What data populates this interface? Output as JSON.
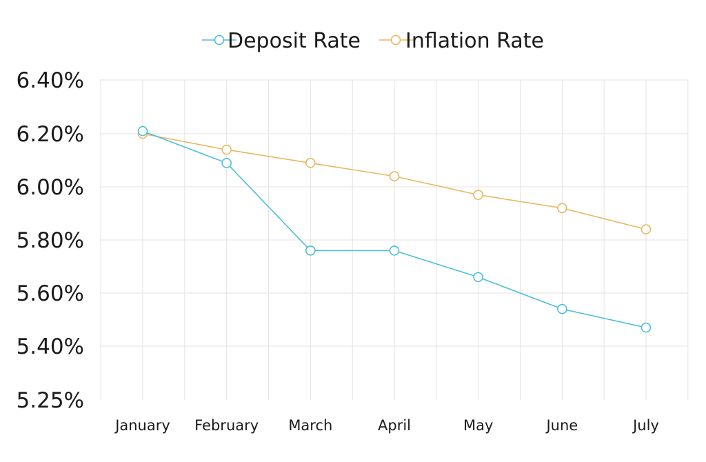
{
  "chart_data": {
    "type": "line",
    "categories": [
      "January",
      "February",
      "March",
      "April",
      "May",
      "June",
      "July"
    ],
    "series": [
      {
        "name": "Deposit Rate",
        "color": "#4bbfd9",
        "values": [
          6.21,
          6.09,
          5.76,
          5.76,
          5.66,
          5.54,
          5.47
        ]
      },
      {
        "name": "Inflation Rate",
        "color": "#e9b760",
        "values": [
          6.2,
          6.14,
          6.09,
          6.04,
          5.97,
          5.92,
          5.84
        ]
      }
    ],
    "y_ticks": [
      {
        "value": 5.25,
        "label": "5.25%"
      },
      {
        "value": 5.4,
        "label": "5.40%"
      },
      {
        "value": 5.6,
        "label": "5.60%"
      },
      {
        "value": 5.8,
        "label": "5.80%"
      },
      {
        "value": 6.0,
        "label": "6.00%"
      },
      {
        "value": 6.2,
        "label": "6.20%"
      },
      {
        "value": 6.4,
        "label": "6.40%"
      }
    ],
    "ylim": [
      5.25,
      6.4
    ],
    "title": "",
    "xlabel": "",
    "ylabel": "",
    "grid": true,
    "legend_position": "top-center"
  }
}
